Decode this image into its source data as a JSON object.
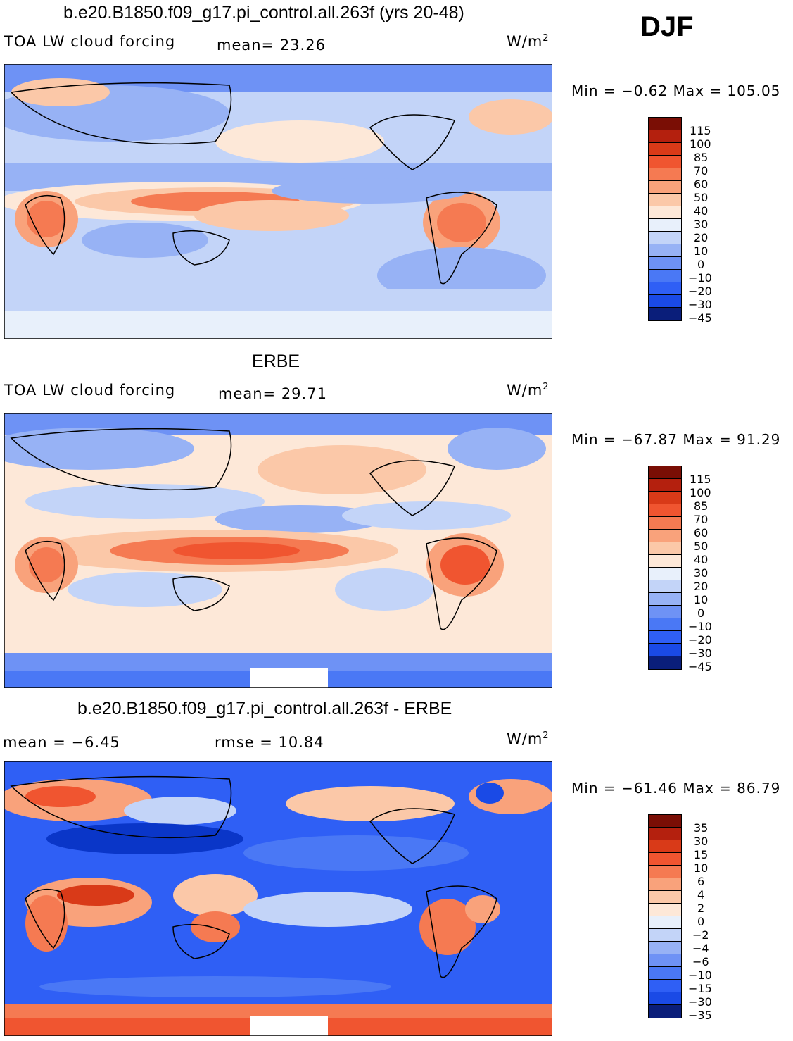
{
  "season": "DJF",
  "units_label": "W/m",
  "units_sup": "2",
  "colors": {
    "levels": [
      "#0a1e7a",
      "#0a36c8",
      "#1a4ae6",
      "#2f5ff5",
      "#4a78f5",
      "#6e92f5",
      "#97b2f5",
      "#c3d4f8",
      "#e8f0fb",
      "#fde8d8",
      "#fbc8a8",
      "#f9a27b",
      "#f57a52",
      "#f05530",
      "#d93a18",
      "#b4200e",
      "#7a0e05"
    ]
  },
  "panels": [
    {
      "title": "b.e20.B1850.f09_g17.pi_control.all.263f (yrs 20-48)",
      "left_label": "TOA LW cloud forcing",
      "stat1": "mean=   23.26",
      "stat2": "",
      "minmax": "Min =   −0.62  Max =  105.05",
      "ticks": [
        "115",
        "100",
        "85",
        "70",
        "60",
        "50",
        "40",
        "30",
        "20",
        "10",
        "0",
        "−10",
        "−20",
        "−30",
        "−45"
      ]
    },
    {
      "title": "ERBE",
      "left_label": "TOA LW cloud forcing",
      "stat1": "mean=   29.71",
      "stat2": "",
      "minmax": "Min = −67.87  Max =   91.29",
      "ticks": [
        "115",
        "100",
        "85",
        "70",
        "60",
        "50",
        "40",
        "30",
        "20",
        "10",
        "0",
        "−10",
        "−20",
        "−30",
        "−45"
      ]
    },
    {
      "title": "b.e20.B1850.f09_g17.pi_control.all.263f - ERBE",
      "left_label": "mean =   −6.45",
      "stat1": "rmse =   10.84",
      "stat2": "",
      "minmax": "Min = −61.46  Max =   86.79",
      "ticks": [
        "35",
        "30",
        "15",
        "10",
        "6",
        "4",
        "2",
        "0",
        "−2",
        "−4",
        "−6",
        "−10",
        "−15",
        "−30",
        "−35"
      ]
    }
  ]
}
